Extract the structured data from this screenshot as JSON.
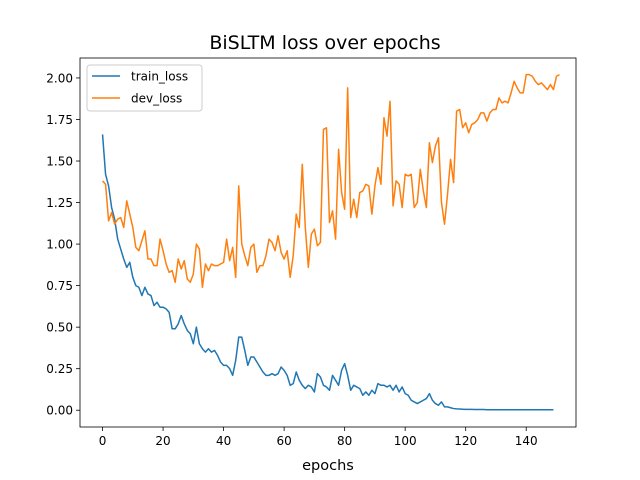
{
  "chart_data": {
    "type": "line",
    "title": "BiSLTM loss over epochs",
    "xlabel": "epochs",
    "ylabel": "",
    "xlim": [
      -7.45,
      156.45
    ],
    "ylim": [
      -0.101,
      2.12
    ],
    "xticks": [
      0,
      20,
      40,
      60,
      80,
      100,
      120,
      140
    ],
    "xtick_labels": [
      "0",
      "20",
      "40",
      "60",
      "80",
      "100",
      "120",
      "140"
    ],
    "yticks": [
      0.0,
      0.25,
      0.5,
      0.75,
      1.0,
      1.25,
      1.5,
      1.75,
      2.0
    ],
    "ytick_labels": [
      "0.00",
      "0.25",
      "0.50",
      "0.75",
      "1.00",
      "1.25",
      "1.50",
      "1.75",
      "2.00"
    ],
    "grid": false,
    "legend_position": "top-left",
    "series": [
      {
        "name": "train_loss",
        "color": "#1f77b4",
        "values": [
          1.66,
          1.42,
          1.35,
          1.22,
          1.15,
          1.03,
          0.97,
          0.91,
          0.86,
          0.89,
          0.8,
          0.75,
          0.74,
          0.69,
          0.74,
          0.7,
          0.69,
          0.63,
          0.65,
          0.62,
          0.62,
          0.61,
          0.59,
          0.49,
          0.49,
          0.52,
          0.57,
          0.52,
          0.48,
          0.46,
          0.4,
          0.5,
          0.4,
          0.37,
          0.35,
          0.37,
          0.35,
          0.36,
          0.33,
          0.29,
          0.27,
          0.27,
          0.25,
          0.21,
          0.3,
          0.44,
          0.44,
          0.36,
          0.27,
          0.32,
          0.32,
          0.29,
          0.26,
          0.23,
          0.21,
          0.21,
          0.22,
          0.21,
          0.22,
          0.26,
          0.24,
          0.21,
          0.15,
          0.16,
          0.23,
          0.18,
          0.15,
          0.13,
          0.15,
          0.14,
          0.11,
          0.22,
          0.2,
          0.15,
          0.14,
          0.12,
          0.21,
          0.18,
          0.15,
          0.24,
          0.28,
          0.21,
          0.12,
          0.15,
          0.14,
          0.13,
          0.09,
          0.11,
          0.09,
          0.12,
          0.1,
          0.16,
          0.15,
          0.15,
          0.14,
          0.15,
          0.12,
          0.15,
          0.11,
          0.14,
          0.1,
          0.09,
          0.06,
          0.05,
          0.04,
          0.05,
          0.06,
          0.07,
          0.1,
          0.06,
          0.04,
          0.03,
          0.05,
          0.02,
          0.02,
          0.015,
          0.01,
          0.008,
          0.007,
          0.006,
          0.005,
          0.005,
          0.005,
          0.004,
          0.004,
          0.004,
          0.004,
          0.003,
          0.003,
          0.003,
          0.003,
          0.003,
          0.003,
          0.003,
          0.003,
          0.003,
          0.003,
          0.003,
          0.003,
          0.003,
          0.003,
          0.003,
          0.003,
          0.003,
          0.003,
          0.003,
          0.003,
          0.003,
          0.003,
          0.003
        ]
      },
      {
        "name": "dev_loss",
        "color": "#ff7f0e",
        "values": [
          1.38,
          1.36,
          1.14,
          1.19,
          1.12,
          1.15,
          1.16,
          1.1,
          1.26,
          1.18,
          1.1,
          0.98,
          0.96,
          1.02,
          1.08,
          0.91,
          0.91,
          0.87,
          0.87,
          1.03,
          0.96,
          0.88,
          0.83,
          0.84,
          0.77,
          0.91,
          0.85,
          0.9,
          0.79,
          0.77,
          0.82,
          1.0,
          0.97,
          0.74,
          0.88,
          0.84,
          0.88,
          0.87,
          0.87,
          0.88,
          0.89,
          1.03,
          0.9,
          0.98,
          0.8,
          1.35,
          1.0,
          0.93,
          0.87,
          0.98,
          1.0,
          0.83,
          0.87,
          0.87,
          0.93,
          1.03,
          1.01,
          0.96,
          1.05,
          0.95,
          0.91,
          0.96,
          0.8,
          0.93,
          1.18,
          1.1,
          1.48,
          1.1,
          0.86,
          1.06,
          1.09,
          0.99,
          1.01,
          1.69,
          1.7,
          1.13,
          1.2,
          1.03,
          1.57,
          1.31,
          1.21,
          1.94,
          1.16,
          1.27,
          1.16,
          1.31,
          1.32,
          1.36,
          1.35,
          1.18,
          1.35,
          1.46,
          1.36,
          1.76,
          1.65,
          1.86,
          1.23,
          1.38,
          1.36,
          1.22,
          1.42,
          1.41,
          1.42,
          1.22,
          1.25,
          1.45,
          1.32,
          1.22,
          1.61,
          1.49,
          1.59,
          1.64,
          1.25,
          1.12,
          1.3,
          1.51,
          1.37,
          1.8,
          1.81,
          1.7,
          1.73,
          1.67,
          1.72,
          1.73,
          1.75,
          1.79,
          1.79,
          1.74,
          1.79,
          1.81,
          1.81,
          1.88,
          1.85,
          1.86,
          1.85,
          1.91,
          1.98,
          1.94,
          1.91,
          1.91,
          2.02,
          2.02,
          2.01,
          1.98,
          1.96,
          1.97,
          1.95,
          1.93,
          1.96,
          1.93,
          2.01,
          2.02
        ]
      }
    ]
  }
}
